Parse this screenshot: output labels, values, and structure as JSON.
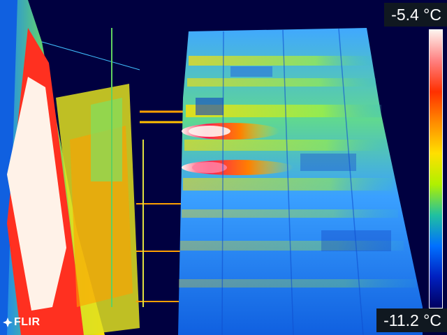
{
  "readouts": {
    "max_temp": "-5.4 °C",
    "min_temp": "-11.2 °C"
  },
  "logo": {
    "text": "FLIR",
    "icon": "flir-star-icon"
  },
  "palette": {
    "name": "iron-rainbow",
    "stops": [
      "#fdf3ee",
      "#ff8080",
      "#ff3000",
      "#ff8c00",
      "#ffe000",
      "#b0f000",
      "#20c0a0",
      "#0070ff",
      "#0020c0",
      "#000060"
    ]
  },
  "scene_colors": {
    "background": "#000040",
    "cold": "#0050e0",
    "cool": "#20a0ff",
    "mid": "#60e060",
    "warm": "#ffe000",
    "hot": "#ff3000",
    "hottest": "#fff0e8"
  }
}
